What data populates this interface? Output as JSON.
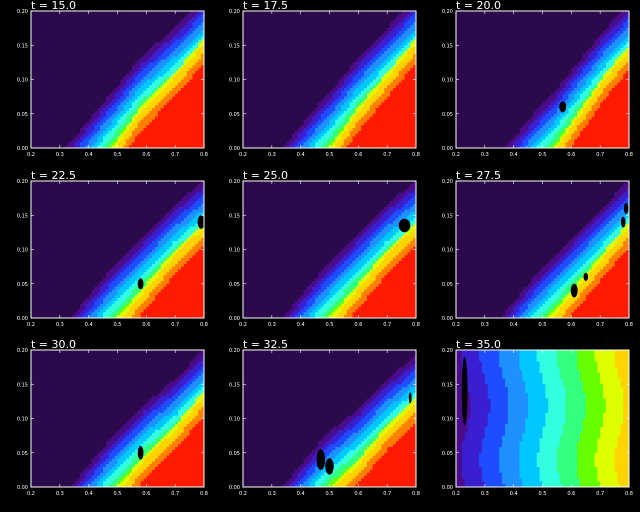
{
  "chart_data": {
    "type": "heatmap",
    "layout": "3x3 grid of filled contour panels",
    "colormap": [
      "#2a0a4a",
      "#4b0c8a",
      "#3a1fd0",
      "#1e4cff",
      "#1e90ff",
      "#00c8ff",
      "#33ffe0",
      "#33ff80",
      "#66ff00",
      "#ddff00",
      "#ffd400",
      "#ff8000",
      "#ff1a00"
    ],
    "xlim": [
      0.2,
      0.8
    ],
    "ylim": [
      0.0,
      0.2
    ],
    "xticks": [
      "0.2",
      "0.3",
      "0.4",
      "0.5",
      "0.6",
      "0.7",
      "0.8"
    ],
    "yticks": [
      "0.00",
      "0.05",
      "0.10",
      "0.15",
      "0.20"
    ],
    "panels": [
      {
        "title": "t = 15.0",
        "mode": "front",
        "front": [
          [
            0.48,
            0.0
          ],
          [
            0.58,
            0.06
          ],
          [
            0.72,
            0.12
          ],
          [
            0.8,
            0.16
          ]
        ],
        "blobs": []
      },
      {
        "title": "t = 17.5",
        "mode": "front",
        "front": [
          [
            0.5,
            0.0
          ],
          [
            0.6,
            0.06
          ],
          [
            0.72,
            0.12
          ],
          [
            0.8,
            0.16
          ]
        ],
        "blobs": []
      },
      {
        "title": "t = 20.0",
        "mode": "front",
        "front": [
          [
            0.54,
            0.0
          ],
          [
            0.62,
            0.05
          ],
          [
            0.72,
            0.11
          ],
          [
            0.8,
            0.15
          ]
        ],
        "blobs": [
          [
            0.57,
            0.06,
            0.012,
            0.008
          ]
        ]
      },
      {
        "title": "t = 22.5",
        "mode": "front",
        "front": [
          [
            0.5,
            0.0
          ],
          [
            0.6,
            0.05
          ],
          [
            0.7,
            0.1
          ],
          [
            0.8,
            0.14
          ]
        ],
        "blobs": [
          [
            0.58,
            0.05,
            0.01,
            0.008
          ],
          [
            0.79,
            0.14,
            0.012,
            0.01
          ]
        ]
      },
      {
        "title": "t = 25.0",
        "mode": "front",
        "front": [
          [
            0.5,
            0.0
          ],
          [
            0.6,
            0.05
          ],
          [
            0.7,
            0.1
          ],
          [
            0.8,
            0.14
          ]
        ],
        "blobs": [
          [
            0.76,
            0.135,
            0.02,
            0.01
          ]
        ]
      },
      {
        "title": "t = 27.5",
        "mode": "front",
        "front": [
          [
            0.52,
            0.0
          ],
          [
            0.62,
            0.05
          ],
          [
            0.72,
            0.1
          ],
          [
            0.8,
            0.14
          ]
        ],
        "blobs": [
          [
            0.61,
            0.04,
            0.012,
            0.01
          ],
          [
            0.65,
            0.06,
            0.008,
            0.006
          ],
          [
            0.78,
            0.14,
            0.008,
            0.008
          ],
          [
            0.79,
            0.16,
            0.008,
            0.008
          ]
        ]
      },
      {
        "title": "t = 30.0",
        "mode": "front",
        "front": [
          [
            0.5,
            0.0
          ],
          [
            0.6,
            0.05
          ],
          [
            0.7,
            0.09
          ],
          [
            0.8,
            0.14
          ]
        ],
        "blobs": [
          [
            0.58,
            0.05,
            0.01,
            0.01
          ]
        ]
      },
      {
        "title": "t = 32.5",
        "mode": "front",
        "front": [
          [
            0.5,
            0.0
          ],
          [
            0.6,
            0.04
          ],
          [
            0.7,
            0.09
          ],
          [
            0.8,
            0.13
          ]
        ],
        "blobs": [
          [
            0.47,
            0.04,
            0.015,
            0.015
          ],
          [
            0.5,
            0.03,
            0.015,
            0.012
          ],
          [
            0.78,
            0.13,
            0.005,
            0.008
          ]
        ]
      },
      {
        "title": "t = 35.0",
        "mode": "bands",
        "front": [],
        "blobs": [
          [
            0.23,
            0.14,
            0.01,
            0.05
          ]
        ]
      }
    ]
  }
}
